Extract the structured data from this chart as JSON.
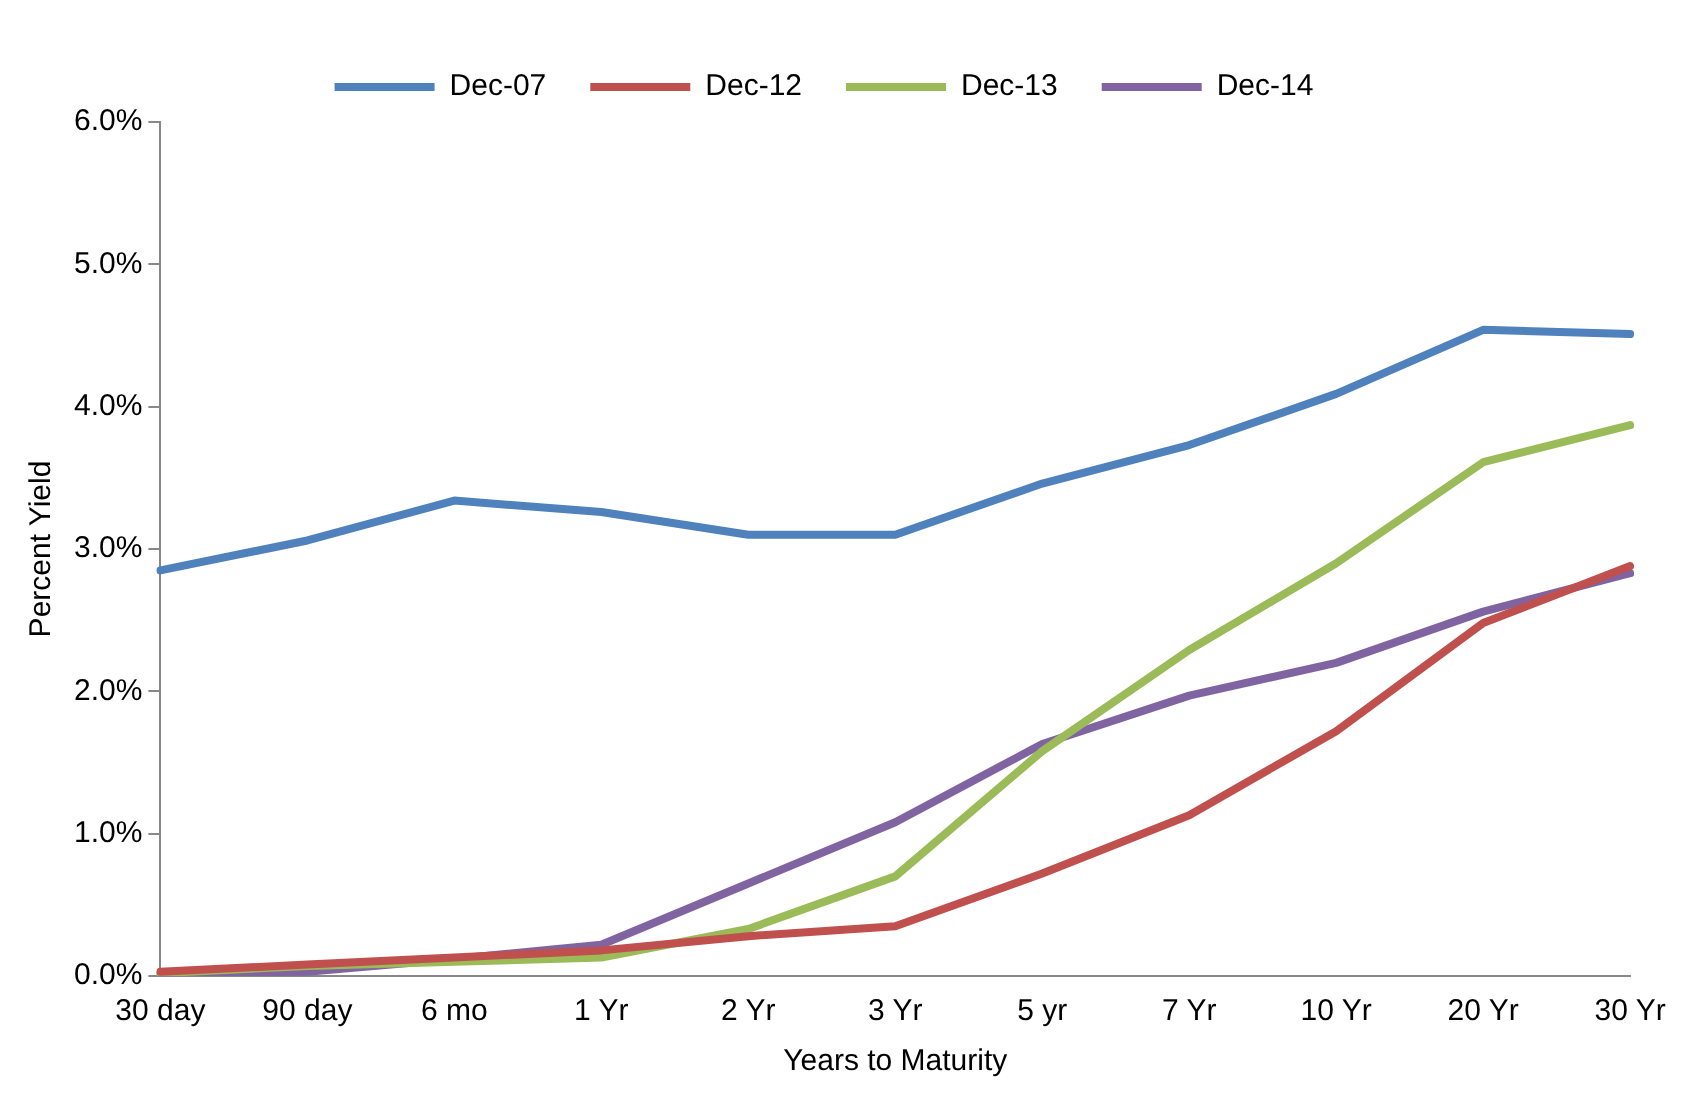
{
  "chart_data": {
    "type": "line",
    "xlabel": "Years to Maturity",
    "ylabel": "Percent Yield",
    "categories": [
      "30 day",
      "90 day",
      "6 mo",
      "1 Yr",
      "2 Yr",
      "3 Yr",
      "5 yr",
      "7 Yr",
      "10 Yr",
      "20 Yr",
      "30 Yr"
    ],
    "series": [
      {
        "name": "Dec-07",
        "color": "#4f81bd",
        "values": [
          2.85,
          3.06,
          3.34,
          3.26,
          3.1,
          3.1,
          3.46,
          3.73,
          4.09,
          4.54,
          4.51
        ]
      },
      {
        "name": "Dec-12",
        "color": "#c0504d",
        "values": [
          0.03,
          0.08,
          0.13,
          0.18,
          0.28,
          0.35,
          0.72,
          1.13,
          1.72,
          2.48,
          2.88
        ]
      },
      {
        "name": "Dec-13",
        "color": "#9bbb59",
        "values": [
          0.02,
          0.07,
          0.1,
          0.13,
          0.33,
          0.7,
          1.58,
          2.29,
          2.9,
          3.61,
          3.87
        ]
      },
      {
        "name": "Dec-14",
        "color": "#8064a2",
        "values": [
          0.02,
          0.03,
          0.12,
          0.22,
          0.65,
          1.08,
          1.63,
          1.97,
          2.2,
          2.56,
          2.83
        ]
      }
    ],
    "ylim": [
      0,
      6
    ],
    "yticks": [
      {
        "value": 0,
        "label": "0.0%"
      },
      {
        "value": 1,
        "label": "1.0%"
      },
      {
        "value": 2,
        "label": "2.0%"
      },
      {
        "value": 3,
        "label": "3.0%"
      },
      {
        "value": 4,
        "label": "4.0%"
      },
      {
        "value": 5,
        "label": "5.0%"
      },
      {
        "value": 6,
        "label": "6.0%"
      }
    ],
    "grid": false,
    "legend": "top",
    "marker": "none",
    "line_style": "solid"
  }
}
